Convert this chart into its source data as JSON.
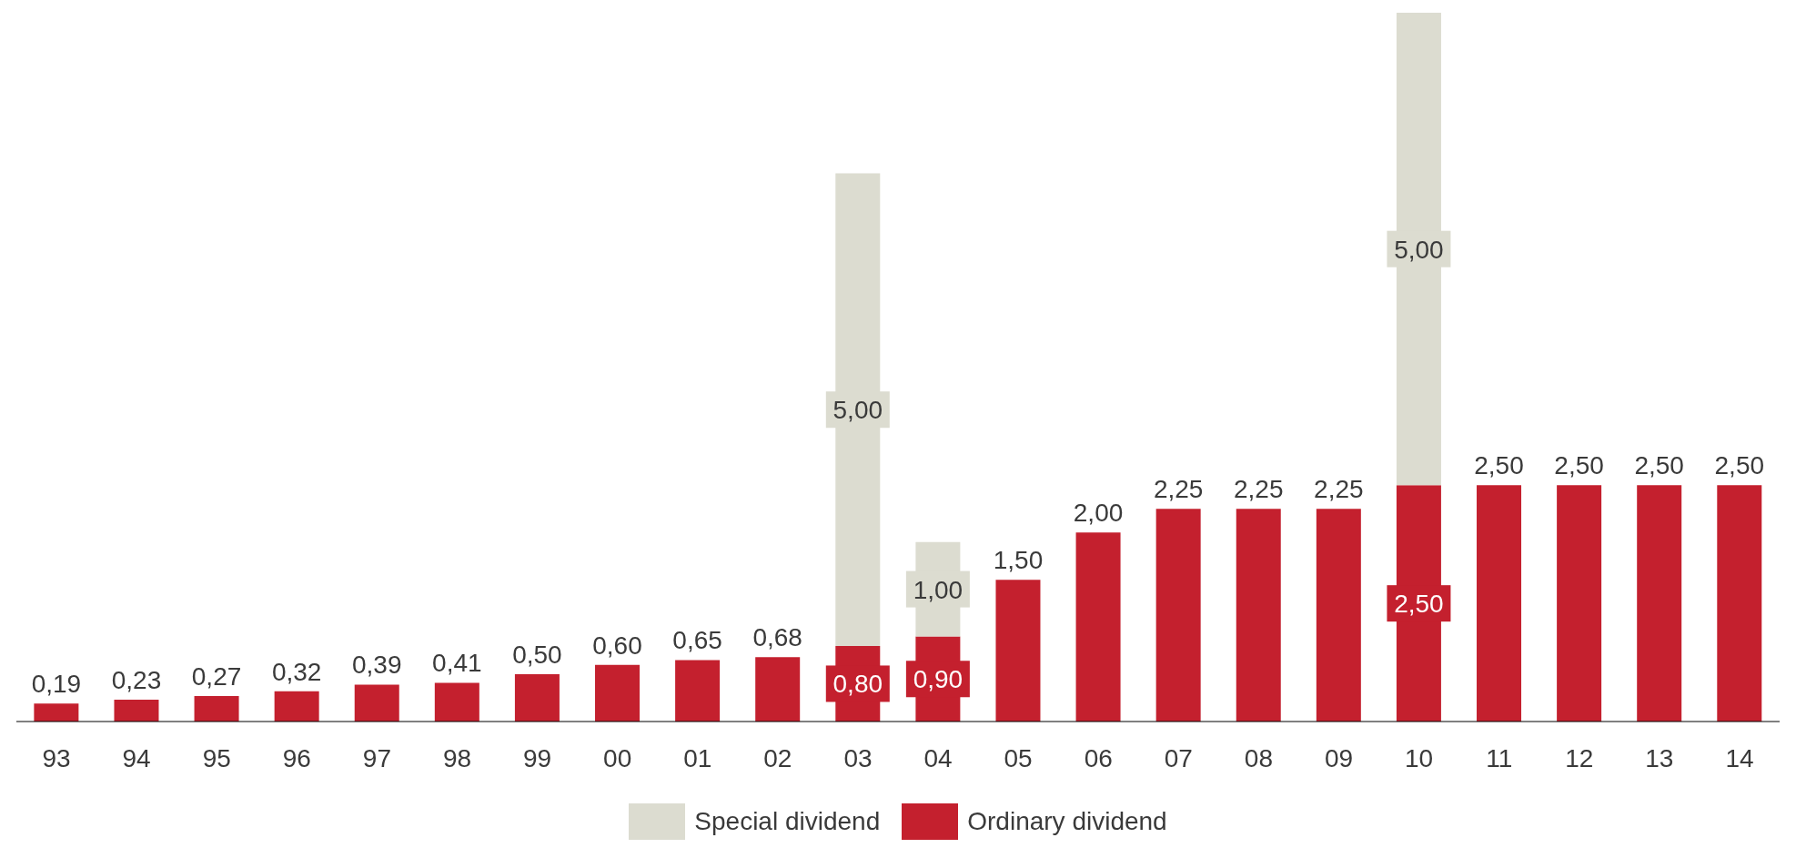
{
  "chart_data": {
    "type": "bar",
    "stacked": true,
    "legend": "bottom",
    "categories": [
      "93",
      "94",
      "95",
      "96",
      "97",
      "98",
      "99",
      "00",
      "01",
      "02",
      "03",
      "04",
      "05",
      "06",
      "07",
      "08",
      "09",
      "10",
      "11",
      "12",
      "13",
      "14"
    ],
    "series": [
      {
        "name": "Ordinary dividend",
        "color": "#c4202e",
        "values": [
          0.19,
          0.23,
          0.27,
          0.32,
          0.39,
          0.41,
          0.5,
          0.6,
          0.65,
          0.68,
          0.8,
          0.9,
          1.5,
          2.0,
          2.25,
          2.25,
          2.25,
          2.5,
          2.5,
          2.5,
          2.5,
          2.5
        ],
        "value_labels": [
          "0,19",
          "0,23",
          "0,27",
          "0,32",
          "0,39",
          "0,41",
          "0,50",
          "0,60",
          "0,65",
          "0,68",
          "0,80",
          "0,90",
          "1,50",
          "2,00",
          "2,25",
          "2,25",
          "2,25",
          "2,50",
          "2,50",
          "2,50",
          "2,50",
          "2,50"
        ]
      },
      {
        "name": "Special dividend",
        "color": "#dcdcd0",
        "values": [
          null,
          null,
          null,
          null,
          null,
          null,
          null,
          null,
          null,
          null,
          5.0,
          1.0,
          null,
          null,
          null,
          null,
          null,
          5.0,
          null,
          null,
          null,
          null
        ],
        "value_labels": [
          null,
          null,
          null,
          null,
          null,
          null,
          null,
          null,
          null,
          null,
          "5,00",
          "1,00",
          null,
          null,
          null,
          null,
          null,
          "5,00",
          null,
          null,
          null,
          null
        ]
      }
    ]
  }
}
